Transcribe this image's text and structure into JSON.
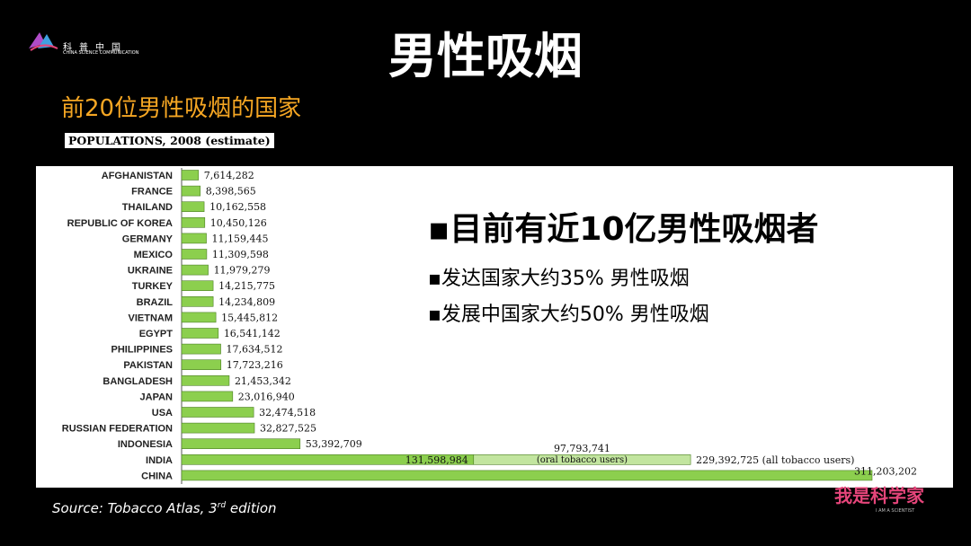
{
  "logo": {
    "cn": "科普中国",
    "en": "CHINA SCIENCE COMMUNICATION"
  },
  "title": "男性吸烟",
  "subtitle": "前20位男性吸烟的国家",
  "populations_label": "POPULATIONS, 2008 (estimate)",
  "bullets": {
    "main": "▪目前有近10亿男性吸烟者",
    "sub1": "▪发达国家大约35% 男性吸烟",
    "sub2": "▪发展中国家大约50% 男性吸烟"
  },
  "source": {
    "text": "Source: Tobacco Atlas, 3",
    "sup": "rd",
    "tail": " edition"
  },
  "brand": {
    "cn": "我是科学家",
    "en": "I AM A SCIENTIST"
  },
  "colors": {
    "bar": "#8ccf4e",
    "bar_light": "#c2e59f",
    "accent": "#f5a623"
  },
  "chart_data": {
    "type": "bar",
    "orientation": "horizontal",
    "categories": [
      "AFGHANISTAN",
      "FRANCE",
      "THAILAND",
      "REPUBLIC OF KOREA",
      "GERMANY",
      "MEXICO",
      "UKRAINE",
      "TURKEY",
      "BRAZIL",
      "VIETNAM",
      "EGYPT",
      "PHILIPPINES",
      "PAKISTAN",
      "BANGLADESH",
      "JAPAN",
      "USA",
      "RUSSIAN FEDERATION",
      "INDONESIA",
      "INDIA",
      "CHINA"
    ],
    "values": [
      7614282,
      8398565,
      10162558,
      10450126,
      11159445,
      11309598,
      11979279,
      14215775,
      14234809,
      15445812,
      16541142,
      17634512,
      17723216,
      21453342,
      23016940,
      32474518,
      32827525,
      53392709,
      229392725,
      311203202
    ],
    "labels": [
      "7,614,282",
      "8,398,565",
      "10,162,558",
      "10,450,126",
      "11,159,445",
      "11,309,598",
      "11,979,279",
      "14,215,775",
      "14,234,809",
      "15,445,812",
      "16,541,142",
      "17,634,512",
      "17,723,216",
      "21,453,342",
      "23,016,940",
      "32,474,518",
      "32,827,525",
      "53,392,709",
      "229,392,725 (all tobacco users)",
      "311,203,202"
    ],
    "india_segments": [
      {
        "value": 131598984,
        "label": "131,598,984"
      },
      {
        "value": 97793741,
        "label": "97,793,741",
        "note": "(oral tobacco users)"
      }
    ],
    "title": "POPULATIONS, 2008 (estimate)"
  }
}
